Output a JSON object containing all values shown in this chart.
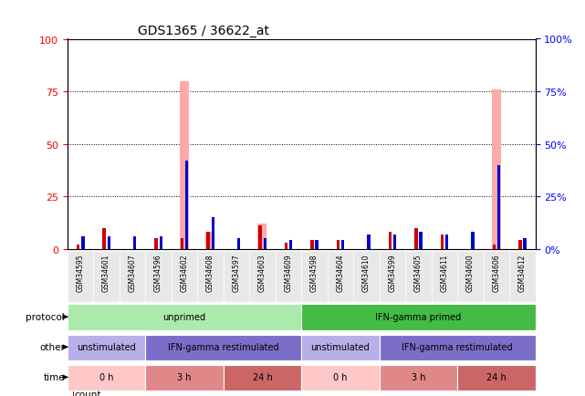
{
  "title": "GDS1365 / 36622_at",
  "samples": [
    "GSM34595",
    "GSM34601",
    "GSM34607",
    "GSM34596",
    "GSM34602",
    "GSM34608",
    "GSM34597",
    "GSM34603",
    "GSM34609",
    "GSM34598",
    "GSM34604",
    "GSM34610",
    "GSM34599",
    "GSM34605",
    "GSM34611",
    "GSM34600",
    "GSM34606",
    "GSM34612"
  ],
  "count_values": [
    2,
    10,
    0,
    5,
    5,
    8,
    0,
    11,
    3,
    4,
    4,
    0,
    8,
    10,
    7,
    0,
    2,
    4
  ],
  "rank_values": [
    6,
    6,
    6,
    6,
    42,
    15,
    5,
    5,
    4,
    4,
    4,
    7,
    7,
    8,
    7,
    8,
    40,
    5
  ],
  "value_absent_heights": [
    0,
    0,
    0,
    0,
    80,
    8,
    0,
    12,
    0,
    0,
    0,
    0,
    0,
    0,
    0,
    0,
    76,
    0
  ],
  "rank_absent_heights": [
    0,
    0,
    0,
    0,
    42,
    0,
    0,
    0,
    0,
    0,
    0,
    0,
    0,
    0,
    0,
    0,
    40,
    0
  ],
  "protocol_groups": [
    {
      "start": 0,
      "end": 9,
      "label": "unprimed",
      "color": "#aaeaaa"
    },
    {
      "start": 9,
      "end": 18,
      "label": "IFN-gamma primed",
      "color": "#44bb44"
    }
  ],
  "other_groups": [
    {
      "start": 0,
      "end": 3,
      "label": "unstimulated",
      "color": "#b8aee8"
    },
    {
      "start": 3,
      "end": 9,
      "label": "IFN-gamma restimulated",
      "color": "#7b6ec8"
    },
    {
      "start": 9,
      "end": 12,
      "label": "unstimulated",
      "color": "#b8aee8"
    },
    {
      "start": 12,
      "end": 18,
      "label": "IFN-gamma restimulated",
      "color": "#7b6ec8"
    }
  ],
  "time_groups": [
    {
      "start": 0,
      "end": 3,
      "label": "0 h",
      "color": "#ffc8c8"
    },
    {
      "start": 3,
      "end": 6,
      "label": "3 h",
      "color": "#e08888"
    },
    {
      "start": 6,
      "end": 9,
      "label": "24 h",
      "color": "#cc6666"
    },
    {
      "start": 9,
      "end": 12,
      "label": "0 h",
      "color": "#ffc8c8"
    },
    {
      "start": 12,
      "end": 15,
      "label": "3 h",
      "color": "#e08888"
    },
    {
      "start": 15,
      "end": 18,
      "label": "24 h",
      "color": "#cc6666"
    }
  ],
  "ylim": [
    0,
    100
  ],
  "yticks": [
    0,
    25,
    50,
    75,
    100
  ],
  "bar_color_count": "#cc0000",
  "bar_color_rank": "#0000cc",
  "bar_color_absent_value": "#ffaaaa",
  "bar_color_absent_rank": "#aaaaff",
  "bg_color": "#ffffff"
}
